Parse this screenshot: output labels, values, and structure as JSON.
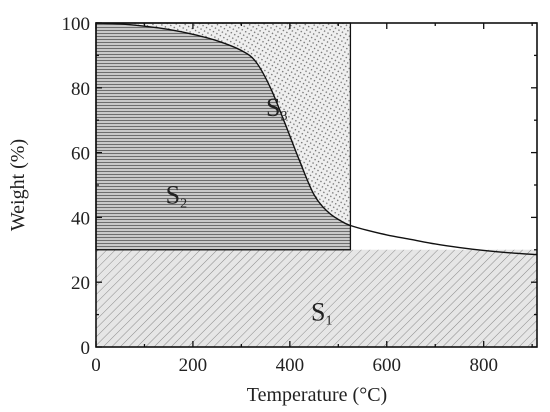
{
  "chart_data": {
    "type": "line",
    "title": "",
    "xlabel": "Temperature (°C)",
    "ylabel": "Weight (%)",
    "xlim": [
      0,
      910
    ],
    "ylim": [
      0,
      100
    ],
    "x_ticks": [
      "0",
      "200",
      "400",
      "600",
      "800"
    ],
    "y_ticks": [
      "0",
      "20",
      "40",
      "60",
      "80",
      "100"
    ],
    "grid": false,
    "legend": "none",
    "series": [
      {
        "x": [
          0,
          50,
          100,
          150,
          200,
          250,
          300,
          330,
          360,
          390,
          420,
          450,
          480,
          510,
          525,
          560,
          600,
          650,
          700,
          750,
          800,
          850,
          910
        ],
        "y": [
          100,
          99.7,
          99,
          98,
          96.5,
          94.5,
          91.5,
          88,
          80,
          69,
          57.5,
          47,
          41.5,
          38.5,
          37.5,
          36,
          34.6,
          33.2,
          31.8,
          30.7,
          29.8,
          29.1,
          28.5
        ]
      }
    ],
    "regions": [
      {
        "label": "S",
        "sub": "1",
        "description": "hatched area under the curve from 30% down to 0"
      },
      {
        "label": "S",
        "sub": "2",
        "description": "horizontally lined area under the curve down to 30%, up to 525 °C"
      },
      {
        "label": "S",
        "sub": "3",
        "description": "dotted area above the curve up to 100%, up to 525 °C"
      }
    ],
    "rect_x_max": 525,
    "baseline_y": 30
  },
  "colors": {
    "line": "#111111",
    "hatch": "#6e6e6e",
    "fill_s1": "#e6e6e6",
    "fill_s2": "#b9b9b9",
    "fill_s3": "#ececec"
  }
}
